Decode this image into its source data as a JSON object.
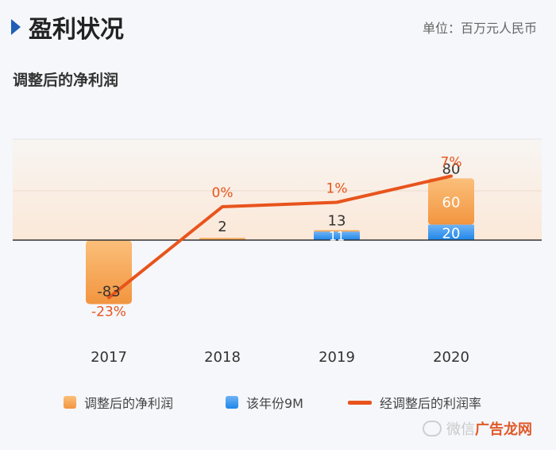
{
  "header": {
    "title": "盈利状况",
    "unit": "单位：百万元人民币",
    "subtitle": "调整后的净利润"
  },
  "legend": {
    "net_profit": "调整后的净利润",
    "nine_month": "该年份9M",
    "margin": "经调整后的利润率"
  },
  "watermark": {
    "prefix": "微信",
    "highlight": "广告龙网"
  },
  "chart_data": {
    "type": "bar",
    "categories": [
      "2017",
      "2018",
      "2019",
      "2020"
    ],
    "series": [
      {
        "name": "调整后的净利润",
        "values": [
          -83,
          2,
          13,
          80
        ]
      },
      {
        "name": "该年份9M",
        "values": [
          null,
          null,
          11,
          20
        ]
      }
    ],
    "segment_labels": [
      [
        "-83"
      ],
      [
        "2"
      ],
      [
        "13",
        "11"
      ],
      [
        "80",
        "60",
        "20"
      ]
    ],
    "line_series": {
      "name": "经调整后的利润率",
      "values": [
        -23,
        0,
        1,
        7
      ],
      "labels": [
        "-23%",
        "0%",
        "1%",
        "7%"
      ]
    },
    "ylim": [
      -83,
      80
    ],
    "colors": {
      "orange_top": "#fbbf7a",
      "orange_bottom": "#f2953f",
      "blue_top": "#6fb3f5",
      "blue_bottom": "#1f86e8",
      "line": "#e8541c",
      "line_label": "#e8541c"
    }
  }
}
